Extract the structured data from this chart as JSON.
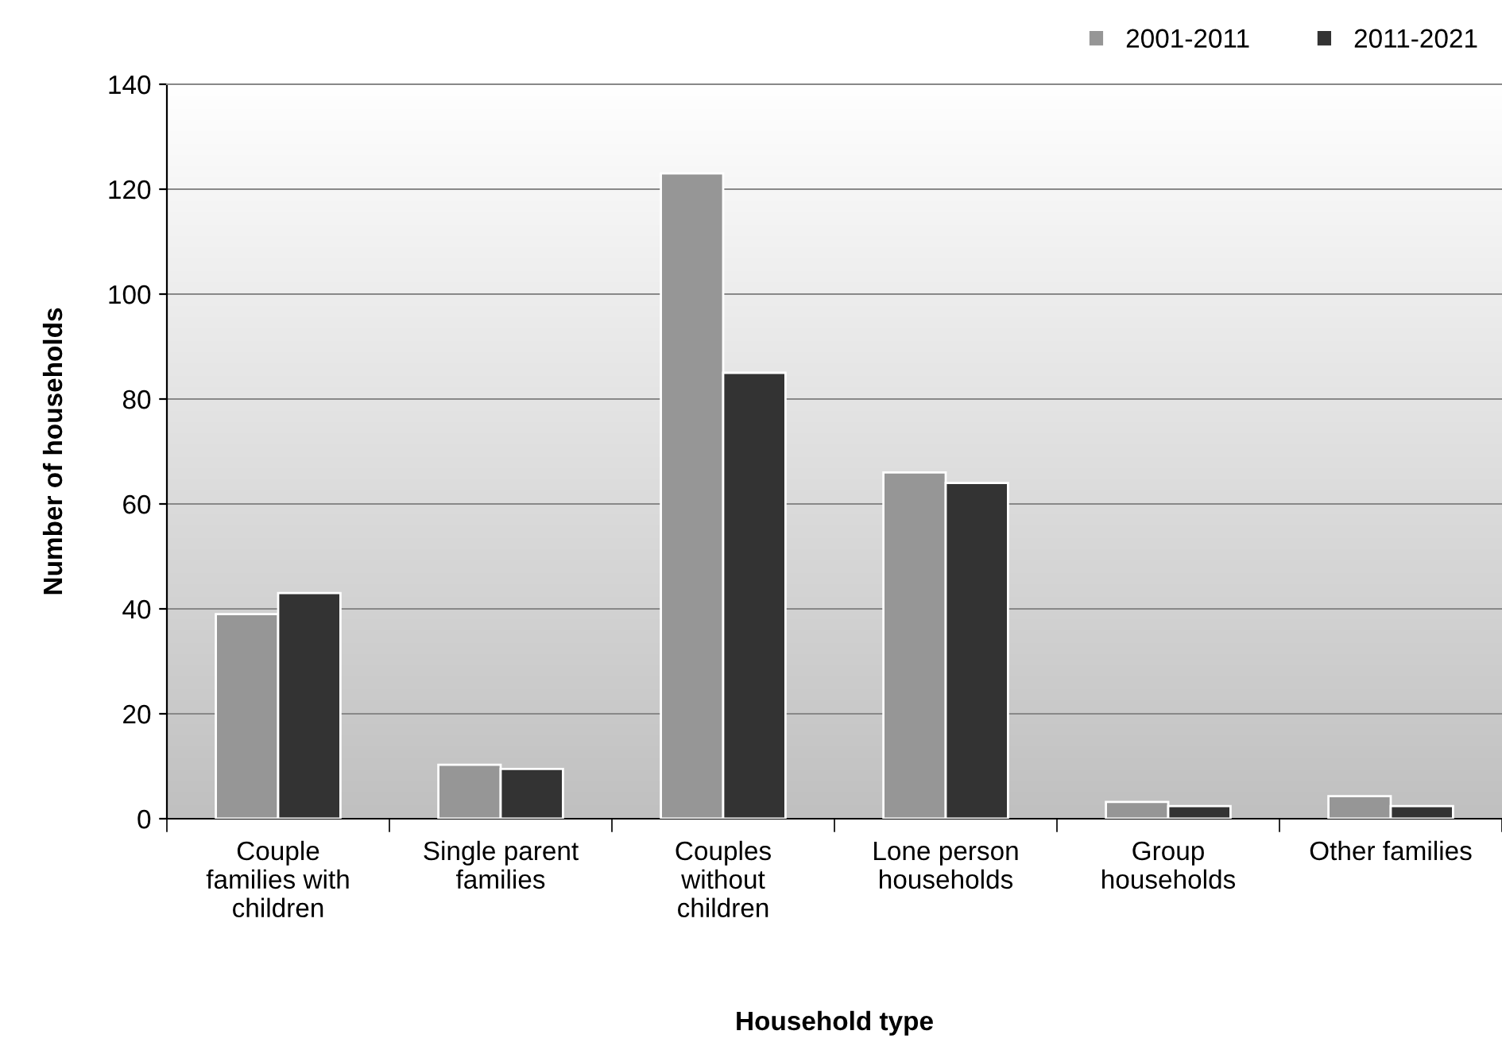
{
  "chart_data": {
    "type": "bar",
    "xlabel": "Household type",
    "ylabel": "Number of households",
    "categories": [
      "Couple\nfamilies with\nchildren",
      "Single parent\nfamilies",
      "Couples\nwithout\nchildren",
      "Lone person\nhouseholds",
      "Group\nhouseholds",
      "Other families"
    ],
    "series": [
      {
        "name": "2001-2011",
        "color": "#969696",
        "values": [
          39,
          10.3,
          123,
          66,
          3.2,
          4.3
        ]
      },
      {
        "name": "2011-2021",
        "color": "#333333",
        "values": [
          43,
          9.5,
          85,
          64,
          2.4,
          2.4
        ]
      }
    ],
    "ylim": [
      0,
      140
    ],
    "yticks": [
      0,
      20,
      40,
      60,
      80,
      100,
      120,
      140
    ],
    "grid": "y",
    "legend": "top right"
  }
}
